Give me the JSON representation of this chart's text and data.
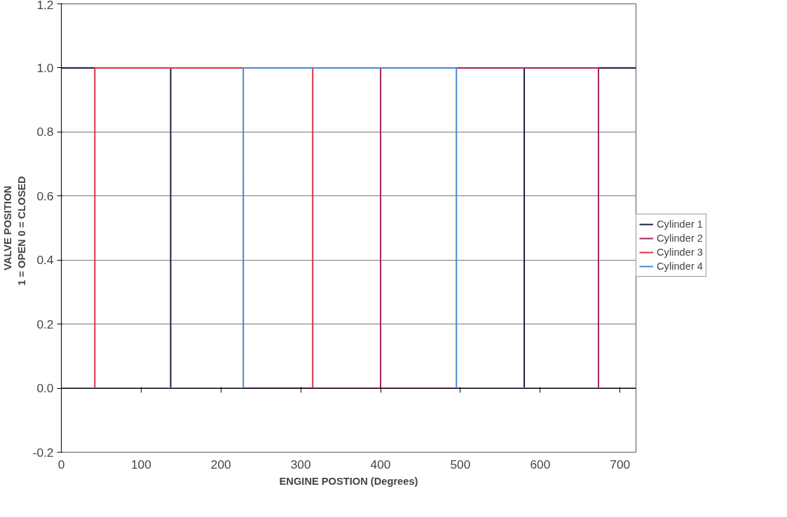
{
  "chart_data": {
    "type": "step",
    "xlabel": "ENGINE POSTION (Degrees)",
    "ylabel": "VALVE POSITION\n1 = OPEN   0 = CLOSED",
    "xlim": [
      0,
      720
    ],
    "xticks": [
      0,
      100,
      200,
      300,
      400,
      500,
      600,
      700
    ],
    "ylim": [
      -0.2,
      1.2
    ],
    "yticks": [
      {
        "value": -0.2,
        "label": "-0.2"
      },
      {
        "value": 0,
        "label": "0.0"
      },
      {
        "value": 0.2,
        "label": "0.2"
      },
      {
        "value": 0.4,
        "label": "0.4"
      },
      {
        "value": 0.6,
        "label": "0.6"
      },
      {
        "value": 0.8,
        "label": "0.8"
      },
      {
        "value": 1.0,
        "label": "1.0"
      },
      {
        "value": 1.2,
        "label": "1.2"
      }
    ],
    "grid": "y",
    "legend": "right",
    "series": [
      {
        "name": "Cylinder 1",
        "color": "#1c1c44",
        "x": [
          0,
          137,
          580,
          720
        ],
        "values": [
          1,
          0,
          1,
          1
        ]
      },
      {
        "name": "Cylinder 2",
        "color": "#a8205e",
        "x": [
          0,
          400,
          673,
          720
        ],
        "values": [
          0,
          1,
          0,
          0
        ]
      },
      {
        "name": "Cylinder 3",
        "color": "#e0303c",
        "x": [
          0,
          42,
          315,
          720
        ],
        "values": [
          0,
          1,
          0,
          0
        ]
      },
      {
        "name": "Cylinder 4",
        "color": "#4a86d0",
        "x": [
          0,
          228,
          495,
          720
        ],
        "values": [
          0,
          1,
          0,
          0
        ]
      }
    ]
  }
}
